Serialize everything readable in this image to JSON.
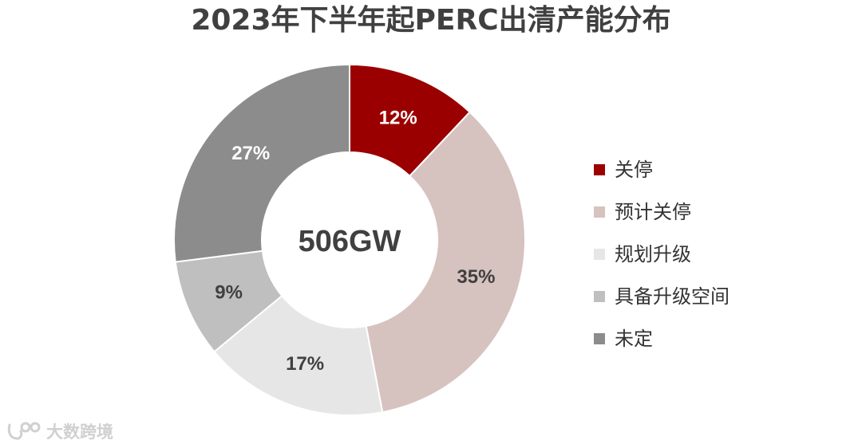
{
  "title": "2023年下半年起PERC出清产能分布",
  "chart_data": {
    "type": "donut",
    "title": "2023年下半年起PERC出清产能分布",
    "center_text": "506GW",
    "categories": [
      "关停",
      "预计关停",
      "规划升级",
      "具备升级空间",
      "未定"
    ],
    "values": [
      12,
      35,
      17,
      9,
      27
    ],
    "labels": [
      "12%",
      "35%",
      "17%",
      "9%",
      "27%"
    ],
    "colors": [
      "#9b0000",
      "#d6c2bf",
      "#e6e6e6",
      "#bfbfbf",
      "#8c8c8c"
    ],
    "label_colors": [
      "#ffffff",
      "#404040",
      "#404040",
      "#404040",
      "#ffffff"
    ],
    "unit": "%",
    "legend_position": "right"
  },
  "watermark": {
    "text": "大数跨境",
    "icon": "watermark-logo-icon"
  }
}
